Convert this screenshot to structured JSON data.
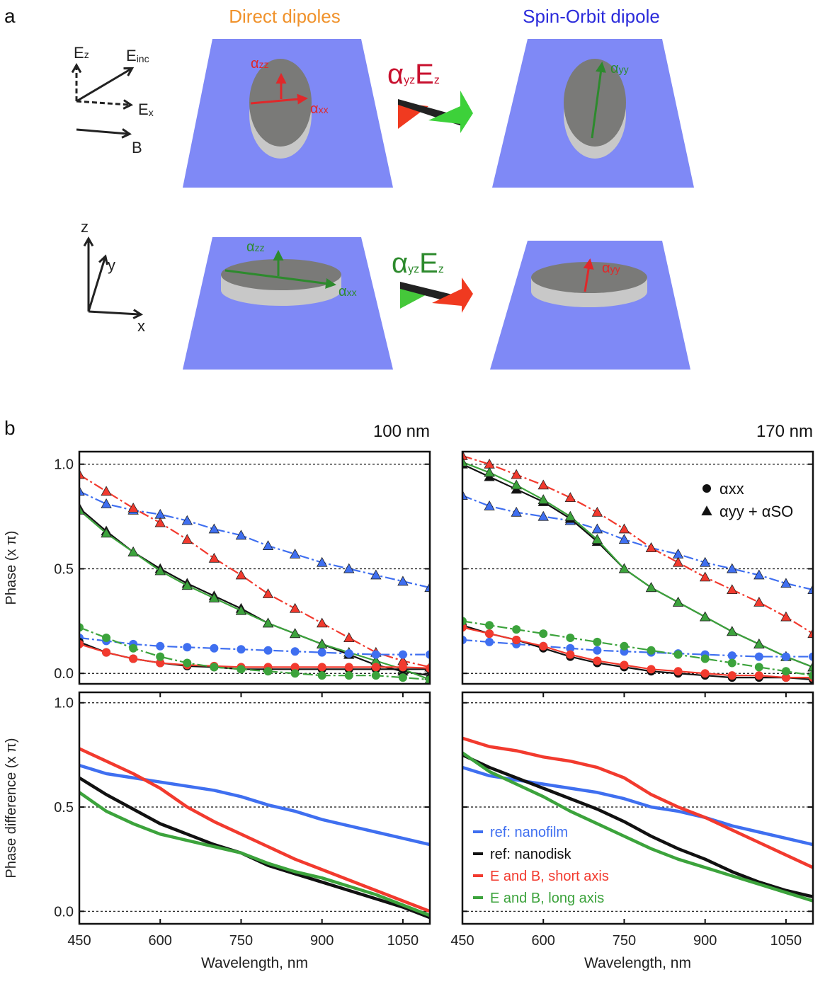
{
  "panel_a": {
    "label": "a",
    "titles": [
      "Direct dipoles",
      "Spin-Orbit dipole"
    ],
    "field_labels": {
      "ez": {
        "base": "E",
        "sub": "z"
      },
      "einc": {
        "base": "E",
        "sub": "inc"
      },
      "ex": {
        "base": "E",
        "sub": "x"
      },
      "b": "B"
    },
    "axes_labels": {
      "z": "z",
      "y": "y",
      "x": "x"
    },
    "top_row": {
      "azz": {
        "base": "α",
        "sub": "zz"
      },
      "axx": {
        "base": "α",
        "sub": "xx"
      },
      "ayy": {
        "base": "α",
        "sub": "yy"
      },
      "coupling": {
        "a": "α",
        "asub": "yz",
        "e": "E",
        "esub": "z"
      }
    },
    "bottom_row": {
      "azz": {
        "base": "α",
        "sub": "zz"
      },
      "axx": {
        "base": "α",
        "sub": "xx"
      },
      "ayy": {
        "base": "α",
        "sub": "yy"
      },
      "coupling": {
        "a": "α",
        "asub": "yz",
        "e": "E",
        "esub": "z"
      }
    }
  },
  "panel_b_label": "b",
  "chart_data": [
    {
      "type": "line",
      "title": "100 nm",
      "ylabel": "Phase (x π)",
      "xlim": [
        450,
        1100
      ],
      "ylim": [
        -0.05,
        1.06
      ],
      "yticks": [
        {
          "value": 0,
          "label": "0.0"
        },
        {
          "value": 0.5,
          "label": "0.5"
        },
        {
          "value": 1,
          "label": "1.0"
        }
      ],
      "ytick_labels": true,
      "grid": true,
      "x": [
        450,
        500,
        550,
        600,
        650,
        700,
        750,
        800,
        850,
        900,
        950,
        1000,
        1050,
        1100
      ],
      "series": [
        {
          "color": "#3f6ff0",
          "marker": "triangle",
          "line": "dashdot",
          "values": [
            0.87,
            0.81,
            0.78,
            0.76,
            0.73,
            0.69,
            0.66,
            0.61,
            0.57,
            0.53,
            0.5,
            0.47,
            0.44,
            0.41
          ]
        },
        {
          "color": "#f23a2e",
          "marker": "triangle",
          "line": "dashdot",
          "values": [
            0.95,
            0.87,
            0.79,
            0.72,
            0.64,
            0.55,
            0.47,
            0.38,
            0.31,
            0.24,
            0.17,
            0.1,
            0.06,
            0.03
          ]
        },
        {
          "color": "#111111",
          "marker": "triangle",
          "line": "solid",
          "values": [
            0.79,
            0.68,
            0.58,
            0.5,
            0.43,
            0.37,
            0.31,
            0.24,
            0.19,
            0.14,
            0.09,
            0.04,
            0.01,
            -0.01
          ]
        },
        {
          "color": "#3ca33c",
          "marker": "triangle",
          "line": "solid",
          "values": [
            0.78,
            0.67,
            0.58,
            0.49,
            0.42,
            0.36,
            0.3,
            0.24,
            0.19,
            0.14,
            0.1,
            0.06,
            0.02,
            -0.03
          ]
        },
        {
          "color": "#3f6ff0",
          "marker": "circle",
          "line": "dashdot",
          "values": [
            0.17,
            0.155,
            0.14,
            0.13,
            0.125,
            0.12,
            0.115,
            0.11,
            0.105,
            0.1,
            0.095,
            0.09,
            0.09,
            0.09
          ]
        },
        {
          "color": "#111111",
          "marker": "circle",
          "line": "solid",
          "values": [
            0.15,
            0.1,
            0.07,
            0.05,
            0.035,
            0.03,
            0.02,
            0.02,
            0.02,
            0.02,
            0.02,
            0.02,
            0.02,
            0.02
          ]
        },
        {
          "color": "#f23a2e",
          "marker": "circle",
          "line": "solid",
          "values": [
            0.14,
            0.1,
            0.07,
            0.05,
            0.04,
            0.035,
            0.03,
            0.03,
            0.03,
            0.03,
            0.03,
            0.03,
            0.03,
            0.025
          ]
        },
        {
          "color": "#3ca33c",
          "marker": "circle",
          "line": "dashdot",
          "values": [
            0.22,
            0.17,
            0.12,
            0.08,
            0.05,
            0.03,
            0.02,
            0.01,
            0,
            -0.01,
            -0.01,
            -0.01,
            -0.02,
            -0.03
          ]
        }
      ]
    },
    {
      "type": "line",
      "title": "170 nm",
      "xlim": [
        450,
        1100
      ],
      "ylim": [
        -0.05,
        1.06
      ],
      "yticks": [
        0,
        0.5,
        1
      ],
      "ytick_labels": false,
      "grid": true,
      "x": [
        450,
        500,
        550,
        600,
        650,
        700,
        750,
        800,
        850,
        900,
        950,
        1000,
        1050,
        1100
      ],
      "legend_position": "upper right",
      "legend": [
        {
          "marker": "circle",
          "label": "αxx"
        },
        {
          "marker": "triangle",
          "label": "αyy + αSO"
        }
      ],
      "series": [
        {
          "color": "#3f6ff0",
          "marker": "triangle",
          "line": "dashdot",
          "values": [
            0.85,
            0.8,
            0.77,
            0.75,
            0.73,
            0.69,
            0.64,
            0.6,
            0.57,
            0.53,
            0.5,
            0.47,
            0.43,
            0.4
          ]
        },
        {
          "color": "#f23a2e",
          "marker": "triangle",
          "line": "dashdot",
          "values": [
            1.04,
            1,
            0.95,
            0.9,
            0.84,
            0.77,
            0.69,
            0.6,
            0.53,
            0.46,
            0.4,
            0.34,
            0.27,
            0.19
          ]
        },
        {
          "color": "#111111",
          "marker": "triangle",
          "line": "solid",
          "values": [
            1,
            0.94,
            0.88,
            0.82,
            0.74,
            0.63,
            0.5,
            0.41,
            0.34,
            0.27,
            0.2,
            0.14,
            0.08,
            0.03
          ]
        },
        {
          "color": "#3ca33c",
          "marker": "triangle",
          "line": "solid",
          "values": [
            1.01,
            0.96,
            0.9,
            0.83,
            0.75,
            0.64,
            0.5,
            0.41,
            0.34,
            0.27,
            0.2,
            0.14,
            0.08,
            0.03
          ]
        },
        {
          "color": "#3f6ff0",
          "marker": "circle",
          "line": "dashdot",
          "values": [
            0.16,
            0.15,
            0.14,
            0.13,
            0.12,
            0.11,
            0.105,
            0.1,
            0.095,
            0.09,
            0.085,
            0.08,
            0.08,
            0.08
          ]
        },
        {
          "color": "#111111",
          "marker": "circle",
          "line": "solid",
          "values": [
            0.23,
            0.19,
            0.16,
            0.12,
            0.08,
            0.05,
            0.03,
            0.01,
            0,
            -0.01,
            -0.02,
            -0.02,
            -0.02,
            -0.03
          ]
        },
        {
          "color": "#f23a2e",
          "marker": "circle",
          "line": "solid",
          "values": [
            0.22,
            0.19,
            0.16,
            0.13,
            0.09,
            0.06,
            0.04,
            0.02,
            0.01,
            0,
            -0.01,
            -0.01,
            -0.02,
            -0.02
          ]
        },
        {
          "color": "#3ca33c",
          "marker": "circle",
          "line": "dashdot",
          "values": [
            0.25,
            0.23,
            0.21,
            0.19,
            0.17,
            0.15,
            0.13,
            0.11,
            0.09,
            0.07,
            0.05,
            0.03,
            0.01,
            -0.01
          ]
        }
      ]
    },
    {
      "type": "line",
      "ylabel": "Phase difference (x π)",
      "xlabel": "Wavelength, nm",
      "xlim": [
        450,
        1100
      ],
      "ylim": [
        -0.06,
        1.05
      ],
      "xticks": [
        450,
        600,
        750,
        900,
        1050
      ],
      "yticks": [
        {
          "value": 0,
          "label": "0.0"
        },
        {
          "value": 0.5,
          "label": "0.5"
        },
        {
          "value": 1,
          "label": "1.0"
        }
      ],
      "ytick_labels": true,
      "grid": true,
      "x": [
        450,
        500,
        550,
        600,
        650,
        700,
        750,
        800,
        850,
        900,
        950,
        1000,
        1050,
        1100
      ],
      "series": [
        {
          "color": "#3f6ff0",
          "marker": "none",
          "line": "thick",
          "values": [
            0.7,
            0.66,
            0.64,
            0.62,
            0.6,
            0.58,
            0.55,
            0.51,
            0.48,
            0.44,
            0.41,
            0.38,
            0.35,
            0.32
          ]
        },
        {
          "color": "#111111",
          "marker": "none",
          "line": "thick",
          "values": [
            0.64,
            0.56,
            0.49,
            0.42,
            0.37,
            0.32,
            0.28,
            0.22,
            0.18,
            0.14,
            0.1,
            0.06,
            0.02,
            -0.03
          ]
        },
        {
          "color": "#f23a2e",
          "marker": "none",
          "line": "thick",
          "values": [
            0.78,
            0.72,
            0.66,
            0.59,
            0.5,
            0.43,
            0.37,
            0.31,
            0.25,
            0.2,
            0.15,
            0.1,
            0.05,
            0
          ]
        },
        {
          "color": "#3ca33c",
          "marker": "none",
          "line": "thick",
          "values": [
            0.57,
            0.48,
            0.42,
            0.37,
            0.34,
            0.31,
            0.28,
            0.23,
            0.19,
            0.16,
            0.12,
            0.08,
            0.03,
            -0.02
          ]
        }
      ]
    },
    {
      "type": "line",
      "xlabel": "Wavelength, nm",
      "xlim": [
        450,
        1100
      ],
      "ylim": [
        -0.06,
        1.05
      ],
      "xticks": [
        450,
        600,
        750,
        900,
        1050
      ],
      "yticks": [
        0,
        0.5,
        1
      ],
      "ytick_labels": false,
      "grid": true,
      "legend_position": "lower left",
      "x": [
        450,
        500,
        550,
        600,
        650,
        700,
        750,
        800,
        850,
        900,
        950,
        1000,
        1050,
        1100
      ],
      "series": [
        {
          "name": "ref: nanofilm",
          "color": "#3f6ff0",
          "marker": "none",
          "line": "thick",
          "values": [
            0.69,
            0.65,
            0.63,
            0.61,
            0.59,
            0.57,
            0.54,
            0.5,
            0.48,
            0.45,
            0.41,
            0.38,
            0.35,
            0.32
          ]
        },
        {
          "name": "ref: nanodisk",
          "color": "#111111",
          "marker": "none",
          "line": "thick",
          "values": [
            0.75,
            0.69,
            0.64,
            0.59,
            0.54,
            0.49,
            0.43,
            0.36,
            0.3,
            0.25,
            0.19,
            0.14,
            0.1,
            0.07
          ]
        },
        {
          "name": "E and B, short axis",
          "color": "#f23a2e",
          "marker": "none",
          "line": "thick",
          "values": [
            0.83,
            0.79,
            0.77,
            0.74,
            0.72,
            0.69,
            0.64,
            0.56,
            0.5,
            0.45,
            0.39,
            0.33,
            0.27,
            0.21
          ]
        },
        {
          "name": "E and B, long axis",
          "color": "#3ca33c",
          "marker": "none",
          "line": "thick",
          "values": [
            0.76,
            0.67,
            0.61,
            0.55,
            0.48,
            0.42,
            0.36,
            0.3,
            0.25,
            0.21,
            0.17,
            0.13,
            0.09,
            0.05
          ]
        }
      ]
    }
  ]
}
